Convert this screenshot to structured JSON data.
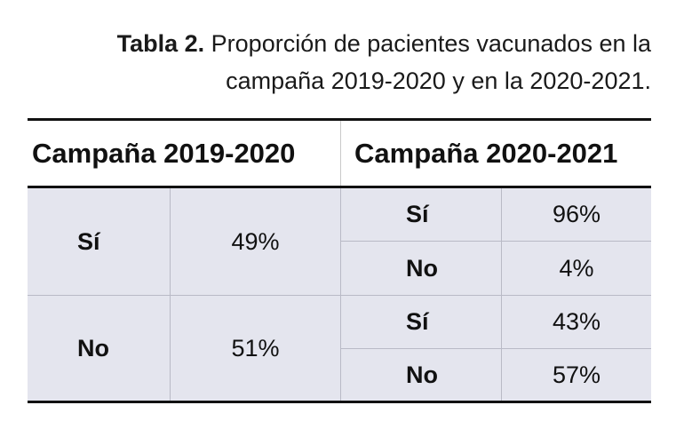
{
  "caption": {
    "label": "Tabla 2.",
    "line1": "Proporción de pacientes vacunados en la",
    "line2": "campaña 2019-2020 y en la 2020-2021."
  },
  "table": {
    "headers": [
      "Campaña 2019-2020",
      "Campaña 2020-2021"
    ],
    "campaign_2019_2020": [
      {
        "answer": "Sí",
        "percent": "49%"
      },
      {
        "answer": "No",
        "percent": "51%"
      }
    ],
    "campaign_2020_2021": [
      {
        "answer": "Sí",
        "percent": "96%"
      },
      {
        "answer": "No",
        "percent": "4%"
      },
      {
        "answer": "Sí",
        "percent": "43%"
      },
      {
        "answer": "No",
        "percent": "57%"
      }
    ]
  },
  "colors": {
    "body_background": "#e4e5ee",
    "rule": "#111111",
    "grid_line": "#b9bac6"
  }
}
